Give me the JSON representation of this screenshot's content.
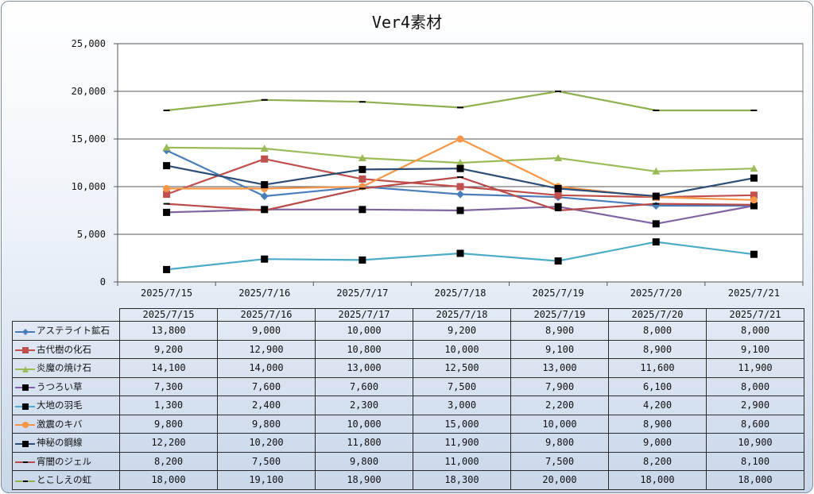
{
  "chart_data": {
    "type": "line",
    "title": "Ver4素材",
    "categories": [
      "2025/7/15",
      "2025/7/16",
      "2025/7/17",
      "2025/7/18",
      "2025/7/19",
      "2025/7/20",
      "2025/7/21"
    ],
    "ylim": [
      0,
      25000
    ],
    "yticks": [
      "0",
      "5,000",
      "10,000",
      "15,000",
      "20,000",
      "25,000"
    ],
    "grid": true,
    "legend": "data-table",
    "series": [
      {
        "name": "アステライト鉱石",
        "values": [
          13800,
          9000,
          10000,
          9200,
          8900,
          8000,
          8000
        ],
        "display": [
          "13,800",
          "9,000",
          "10,000",
          "9,200",
          "8,900",
          "8,000",
          "8,000"
        ],
        "color": "#4a7ebb",
        "marker": "diamond"
      },
      {
        "name": "古代樹の化石",
        "values": [
          9200,
          12900,
          10800,
          10000,
          9100,
          8900,
          9100
        ],
        "display": [
          "9,200",
          "12,900",
          "10,800",
          "10,000",
          "9,100",
          "8,900",
          "9,100"
        ],
        "color": "#c0504d",
        "marker": "square"
      },
      {
        "name": "炎魔の焼け石",
        "values": [
          14100,
          14000,
          13000,
          12500,
          13000,
          11600,
          11900
        ],
        "display": [
          "14,100",
          "14,000",
          "13,000",
          "12,500",
          "13,000",
          "11,600",
          "11,900"
        ],
        "color": "#9bbb59",
        "marker": "triangle"
      },
      {
        "name": "うつろい草",
        "values": [
          7300,
          7600,
          7600,
          7500,
          7900,
          6100,
          8000
        ],
        "display": [
          "7,300",
          "7,600",
          "7,600",
          "7,500",
          "7,900",
          "6,100",
          "8,000"
        ],
        "color": "#8064a2",
        "marker": "blacksquare"
      },
      {
        "name": "大地の羽毛",
        "values": [
          1300,
          2400,
          2300,
          3000,
          2200,
          4200,
          2900
        ],
        "display": [
          "1,300",
          "2,400",
          "2,300",
          "3,000",
          "2,200",
          "4,200",
          "2,900"
        ],
        "color": "#4bacc6",
        "marker": "blacksquare"
      },
      {
        "name": "激震のキバ",
        "values": [
          9800,
          9800,
          10000,
          15000,
          10000,
          8900,
          8600
        ],
        "display": [
          "9,800",
          "9,800",
          "10,000",
          "15,000",
          "10,000",
          "8,900",
          "8,600"
        ],
        "color": "#f79646",
        "marker": "circle"
      },
      {
        "name": "神秘の鋼線",
        "values": [
          12200,
          10200,
          11800,
          11900,
          9800,
          9000,
          10900
        ],
        "display": [
          "12,200",
          "10,200",
          "11,800",
          "11,900",
          "9,800",
          "9,000",
          "10,900"
        ],
        "color": "#2c4d75",
        "marker": "blacksquare"
      },
      {
        "name": "宵闇のジェル",
        "values": [
          8200,
          7500,
          9800,
          11000,
          7500,
          8200,
          8100
        ],
        "display": [
          "8,200",
          "7,500",
          "9,800",
          "11,000",
          "7,500",
          "8,200",
          "8,100"
        ],
        "color": "#b84a47",
        "marker": "dash"
      },
      {
        "name": "とこしえの虹",
        "values": [
          18000,
          19100,
          18900,
          18300,
          20000,
          18000,
          18000
        ],
        "display": [
          "18,000",
          "19,100",
          "18,900",
          "18,300",
          "20,000",
          "18,000",
          "18,000"
        ],
        "color": "#8fb04f",
        "marker": "dash"
      }
    ]
  }
}
